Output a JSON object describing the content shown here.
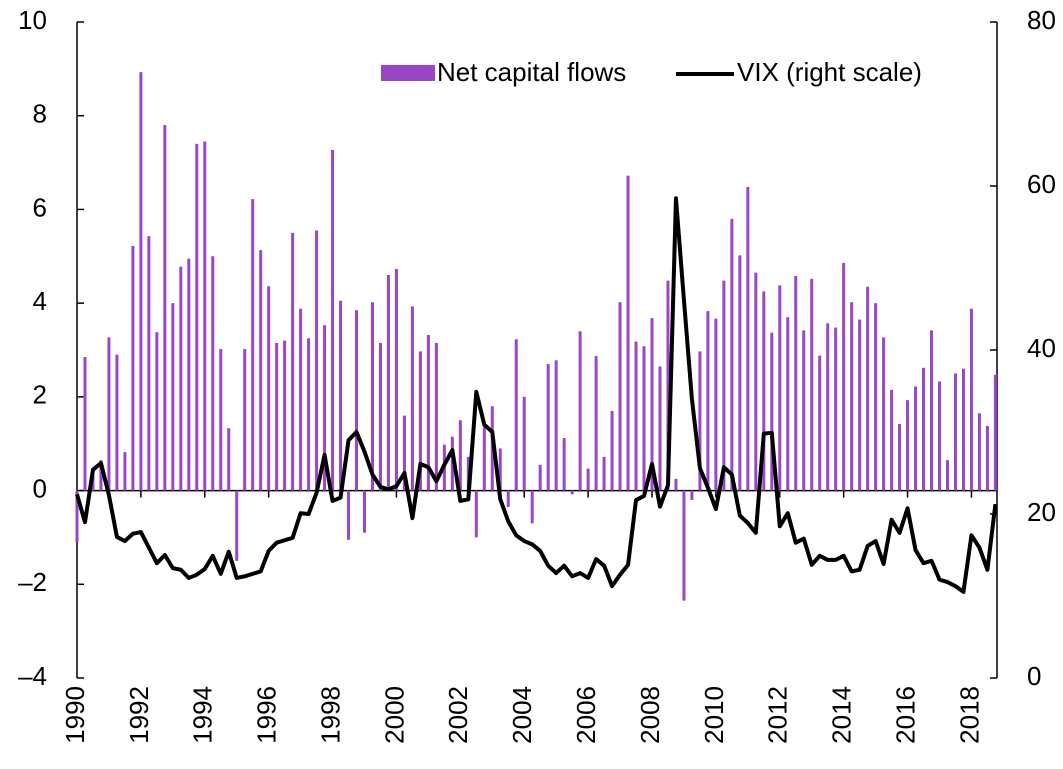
{
  "chart_data": {
    "type": "bar",
    "x": [
      1990,
      1990.25,
      1990.5,
      1990.75,
      1991,
      1991.25,
      1991.5,
      1991.75,
      1992,
      1992.25,
      1992.5,
      1992.75,
      1993,
      1993.25,
      1993.5,
      1993.75,
      1994,
      1994.25,
      1994.5,
      1994.75,
      1995,
      1995.25,
      1995.5,
      1995.75,
      1996,
      1996.25,
      1996.5,
      1996.75,
      1997,
      1997.25,
      1997.5,
      1997.75,
      1998,
      1998.25,
      1998.5,
      1998.75,
      1999,
      1999.25,
      1999.5,
      1999.75,
      2000,
      2000.25,
      2000.5,
      2000.75,
      2001,
      2001.25,
      2001.5,
      2001.75,
      2002,
      2002.25,
      2002.5,
      2002.75,
      2003,
      2003.25,
      2003.5,
      2003.75,
      2004,
      2004.25,
      2004.5,
      2004.75,
      2005,
      2005.25,
      2005.5,
      2005.75,
      2006,
      2006.25,
      2006.5,
      2006.75,
      2007,
      2007.25,
      2007.5,
      2007.75,
      2008,
      2008.25,
      2008.5,
      2008.75,
      2009,
      2009.25,
      2009.5,
      2009.75,
      2010,
      2010.25,
      2010.5,
      2010.75,
      2011,
      2011.25,
      2011.5,
      2011.75,
      2012,
      2012.25,
      2012.5,
      2012.75,
      2013,
      2013.25,
      2013.5,
      2013.75,
      2014,
      2014.25,
      2014.5,
      2014.75,
      2015,
      2015.25,
      2015.5,
      2015.75,
      2016,
      2016.25,
      2016.5,
      2016.75,
      2017,
      2017.25,
      2017.5,
      2017.75,
      2018,
      2018.25,
      2018.5,
      2018.75
    ],
    "series": [
      {
        "name": "Net capital flows",
        "type": "bar",
        "color": "#9946c8",
        "axis": "y",
        "values": [
          -1.1,
          2.85,
          0.4,
          0.65,
          3.27,
          2.9,
          0.82,
          5.22,
          8.93,
          5.43,
          3.38,
          7.8,
          4.0,
          4.78,
          4.95,
          7.4,
          7.45,
          5.0,
          3.02,
          1.33,
          -1.5,
          3.02,
          6.22,
          5.13,
          4.36,
          3.15,
          3.2,
          5.5,
          3.88,
          3.25,
          5.55,
          3.53,
          7.27,
          4.05,
          -1.05,
          3.85,
          -0.9,
          4.02,
          3.15,
          4.6,
          4.73,
          1.6,
          3.93,
          2.97,
          3.32,
          3.15,
          0.98,
          1.15,
          1.5,
          0.72,
          -1.0,
          1.35,
          1.8,
          0.9,
          -0.35,
          3.23,
          2.0,
          -0.7,
          0.55,
          2.7,
          2.78,
          1.12,
          -0.08,
          3.4,
          0.47,
          2.87,
          0.72,
          1.7,
          4.02,
          6.72,
          3.18,
          3.08,
          3.68,
          2.65,
          4.48,
          0.25,
          -2.35,
          -0.2,
          2.97,
          3.83,
          3.67,
          4.48,
          5.8,
          5.02,
          6.48,
          4.65,
          4.25,
          3.37,
          4.38,
          3.7,
          4.58,
          3.42,
          4.52,
          2.88,
          3.57,
          3.48,
          4.86,
          4.02,
          3.65,
          4.35,
          4.0,
          3.27,
          2.15,
          1.42,
          1.93,
          2.22,
          2.62,
          3.42,
          2.33,
          0.65,
          2.5,
          2.6,
          3.88,
          1.65,
          1.38,
          2.47
        ]
      },
      {
        "name": "VIX (right scale)",
        "type": "line",
        "color": "#000000",
        "axis": "y2",
        "values": [
          22.4,
          19,
          25.4,
          26.2,
          22.3,
          17.2,
          16.7,
          17.6,
          17.8,
          15.9,
          14,
          15,
          13.4,
          13.2,
          12.2,
          12.6,
          13.3,
          14.9,
          12.7,
          15.4,
          12.2,
          12.4,
          12.7,
          13,
          15.5,
          16.5,
          16.8,
          17.1,
          20.1,
          20,
          22.6,
          27.2,
          21.6,
          22,
          29,
          30,
          27.6,
          24.8,
          23.3,
          23,
          23.4,
          25,
          19.5,
          26.1,
          25.7,
          24,
          26,
          27.8,
          21.6,
          21.8,
          34.9,
          30.9,
          30,
          21.8,
          19.1,
          17.4,
          16.7,
          16.3,
          15.5,
          13.7,
          12.8,
          13.7,
          12.4,
          12.8,
          12.2,
          14.5,
          13.7,
          11.2,
          12.6,
          13.8,
          21.7,
          22.2,
          26.1,
          20.9,
          23.5,
          58.5,
          46.1,
          34,
          25.6,
          23.2,
          20.6,
          25.7,
          24.8,
          19.8,
          18.9,
          17.7,
          29.8,
          29.9,
          18.5,
          20.1,
          16.5,
          17,
          13.8,
          14.9,
          14.4,
          14.4,
          14.9,
          13,
          13.2,
          16.1,
          16.7,
          13.9,
          19.3,
          17.7,
          20.7,
          15.6,
          14,
          14.3,
          12,
          11.7,
          11.2,
          10.5,
          17.4,
          15.9,
          13.2,
          21.2
        ]
      }
    ],
    "xlim": [
      1990,
      2018.8
    ],
    "xticks": [
      1990,
      1992,
      1994,
      1996,
      1998,
      2000,
      2002,
      2004,
      2006,
      2008,
      2010,
      2012,
      2014,
      2016,
      2018
    ],
    "ylim": [
      -4,
      10
    ],
    "yticks": [
      {
        "value": -4,
        "label": "–4"
      },
      {
        "value": -2,
        "label": "–2"
      },
      0,
      2,
      4,
      6,
      8,
      10
    ],
    "y2lim": [
      0,
      80
    ],
    "y2ticks": [
      0,
      20,
      40,
      60,
      80
    ],
    "legend": "top-right"
  }
}
